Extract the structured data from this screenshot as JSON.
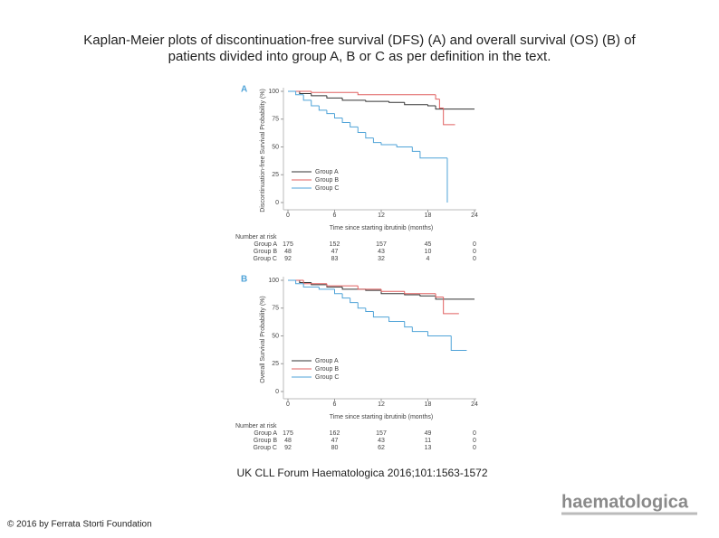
{
  "title_line1": "Kaplan-Meier plots of discontinuation-free survival (DFS) (A) and overall survival (OS) (B) of",
  "title_line2": "patients divided into group A, B or C as per definition in the text.",
  "source": "UK CLL Forum Haematologica 2016;101:1563-1572",
  "copyright": "© 2016 by Ferrata Storti Foundation",
  "logo": "haematologica",
  "chart_data": [
    {
      "type": "step",
      "panel_label": "A",
      "ylabel": "Discontinuation-free Survival Probability (%)",
      "xlabel": "Time since starting ibrutinib (months)",
      "xlim": [
        0,
        24
      ],
      "ylim": [
        0,
        100
      ],
      "xticks": [
        0,
        6,
        12,
        18,
        24
      ],
      "yticks": [
        0,
        25,
        50,
        75,
        100
      ],
      "legend": "lower left",
      "series": [
        {
          "name": "Group A",
          "color": "#333333",
          "x": [
            0,
            1.5,
            3,
            5,
            7,
            10,
            13,
            15,
            18,
            19,
            24
          ],
          "values": [
            100,
            98,
            96,
            94,
            92,
            91,
            90,
            88,
            87,
            84,
            84
          ]
        },
        {
          "name": "Group B",
          "color": "#e06060",
          "x": [
            0,
            3,
            9,
            19,
            19.5,
            20,
            21.5
          ],
          "values": [
            100,
            99,
            97,
            93,
            85,
            70,
            70
          ]
        },
        {
          "name": "Group C",
          "color": "#4fa3d8",
          "x": [
            0,
            1,
            2,
            3,
            4,
            5,
            6,
            7,
            8,
            9,
            10,
            11,
            12,
            14,
            16,
            17,
            20.5
          ],
          "values": [
            100,
            97,
            92,
            87,
            83,
            80,
            76,
            72,
            68,
            63,
            58,
            54,
            52,
            50,
            46,
            40,
            0
          ]
        }
      ],
      "risk_table": {
        "title": "Number at risk",
        "rows": [
          {
            "name": "Group A",
            "values": [
              175,
              152,
              157,
              45,
              0
            ]
          },
          {
            "name": "Group B",
            "values": [
              48,
              47,
              43,
              10,
              0
            ]
          },
          {
            "name": "Group C",
            "values": [
              92,
              83,
              32,
              4,
              0
            ]
          }
        ]
      }
    },
    {
      "type": "step",
      "panel_label": "B",
      "ylabel": "Overall Survival Probability (%)",
      "xlabel": "Time since starting ibrutinib (months)",
      "xlim": [
        0,
        24
      ],
      "ylim": [
        0,
        100
      ],
      "xticks": [
        0,
        6,
        12,
        18,
        24
      ],
      "yticks": [
        0,
        25,
        50,
        75,
        100
      ],
      "legend": "lower left",
      "series": [
        {
          "name": "Group A",
          "color": "#333333",
          "x": [
            0,
            1.5,
            3,
            5,
            7,
            10,
            12,
            15,
            17,
            19,
            24
          ],
          "values": [
            100,
            98,
            96,
            94,
            92,
            91,
            88,
            87,
            86,
            83,
            83
          ]
        },
        {
          "name": "Group B",
          "color": "#e06060",
          "x": [
            0,
            2,
            5,
            9,
            12,
            15,
            19,
            20,
            22
          ],
          "values": [
            100,
            97,
            95,
            92,
            90,
            88,
            85,
            70,
            70
          ]
        },
        {
          "name": "Group C",
          "color": "#4fa3d8",
          "x": [
            0,
            1,
            2,
            4,
            6,
            7,
            8,
            9,
            10,
            11,
            13,
            15,
            16,
            18,
            21,
            23
          ],
          "values": [
            100,
            97,
            94,
            92,
            88,
            84,
            80,
            75,
            72,
            67,
            63,
            58,
            54,
            50,
            37,
            37
          ]
        }
      ],
      "risk_table": {
        "title": "Number at risk",
        "rows": [
          {
            "name": "Group A",
            "values": [
              175,
              162,
              157,
              49,
              0
            ]
          },
          {
            "name": "Group B",
            "values": [
              48,
              47,
              43,
              11,
              0
            ]
          },
          {
            "name": "Group C",
            "values": [
              92,
              80,
              62,
              13,
              0
            ]
          }
        ]
      }
    }
  ]
}
